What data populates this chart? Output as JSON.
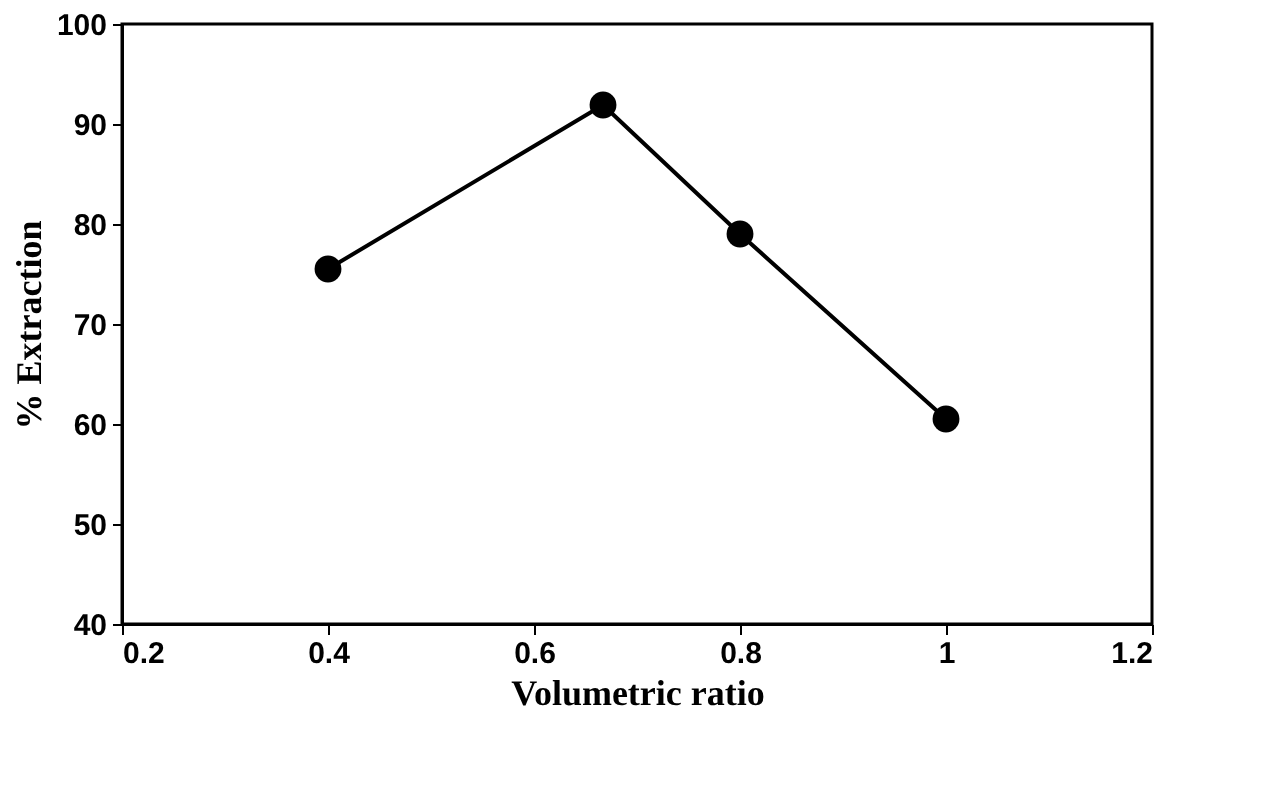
{
  "chart_data": {
    "type": "line",
    "xlabel": "Volumetric ratio",
    "ylabel": "% Extraction",
    "x": [
      0.4,
      0.667,
      0.8,
      1
    ],
    "series": [
      {
        "color": "#000000",
        "values": [
          75.5,
          91.9,
          79.0,
          60.5
        ]
      }
    ],
    "xlim": [
      0.2,
      1.2
    ],
    "xticks": [
      0.2,
      0.4,
      0.6,
      0.8,
      1,
      1.2
    ],
    "ylim": [
      40,
      100
    ],
    "yticks": [
      40,
      50,
      60,
      70,
      80,
      90,
      100
    ],
    "grid": false,
    "legend": false,
    "marker": "circle",
    "line_style": "solid"
  }
}
